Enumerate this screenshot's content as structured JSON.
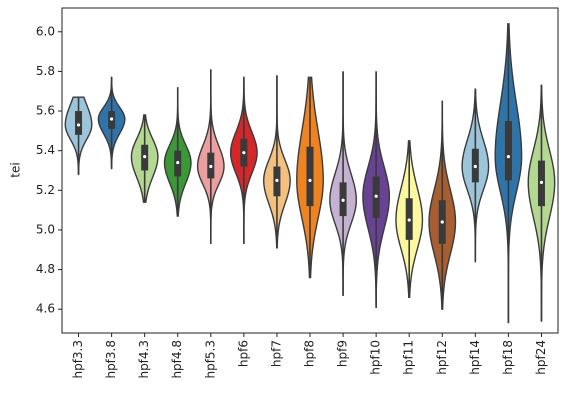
{
  "chart_data": {
    "type": "violin",
    "y_label": "tei",
    "categories": [
      "hpf3.3",
      "hpf3.8",
      "hpf4.3",
      "hpf4.8",
      "hpf5.3",
      "hpf6",
      "hpf7",
      "hpf8",
      "hpf9",
      "hpf10",
      "hpf11",
      "hpf12",
      "hpf14",
      "hpf18",
      "hpf24"
    ],
    "colors": [
      "#9cc5dc",
      "#2f74a8",
      "#b4d892",
      "#3c9737",
      "#ec9f9e",
      "#d4272a",
      "#f4c080",
      "#ef8322",
      "#c4b2d2",
      "#684293",
      "#fbf8a0",
      "#a75e31",
      "#9cc5dc",
      "#2f74a8",
      "#b4d892"
    ],
    "min": [
      5.28,
      5.31,
      5.14,
      5.07,
      4.93,
      4.93,
      4.91,
      4.76,
      4.67,
      4.61,
      4.66,
      4.6,
      4.84,
      4.53,
      4.54
    ],
    "q1": [
      5.48,
      5.51,
      5.3,
      5.27,
      5.26,
      5.32,
      5.17,
      5.12,
      5.07,
      5.06,
      4.95,
      4.93,
      5.24,
      5.25,
      5.12
    ],
    "median": [
      5.53,
      5.56,
      5.37,
      5.34,
      5.32,
      5.39,
      5.25,
      5.25,
      5.15,
      5.17,
      5.05,
      5.04,
      5.32,
      5.37,
      5.24
    ],
    "q3": [
      5.6,
      5.6,
      5.43,
      5.4,
      5.39,
      5.46,
      5.32,
      5.42,
      5.24,
      5.27,
      5.16,
      5.15,
      5.41,
      5.55,
      5.35
    ],
    "max": [
      5.67,
      5.77,
      5.58,
      5.72,
      5.81,
      5.77,
      5.78,
      5.77,
      5.8,
      5.8,
      5.45,
      5.65,
      5.71,
      6.04,
      5.73
    ],
    "ylim": [
      4.48,
      6.12
    ],
    "yticks": [
      4.6,
      4.8,
      {
        "value": 5.0,
        "label": "5.0"
      },
      5.2,
      5.4,
      5.6,
      5.8,
      {
        "value": 6.0,
        "label": "6.0"
      }
    ]
  }
}
